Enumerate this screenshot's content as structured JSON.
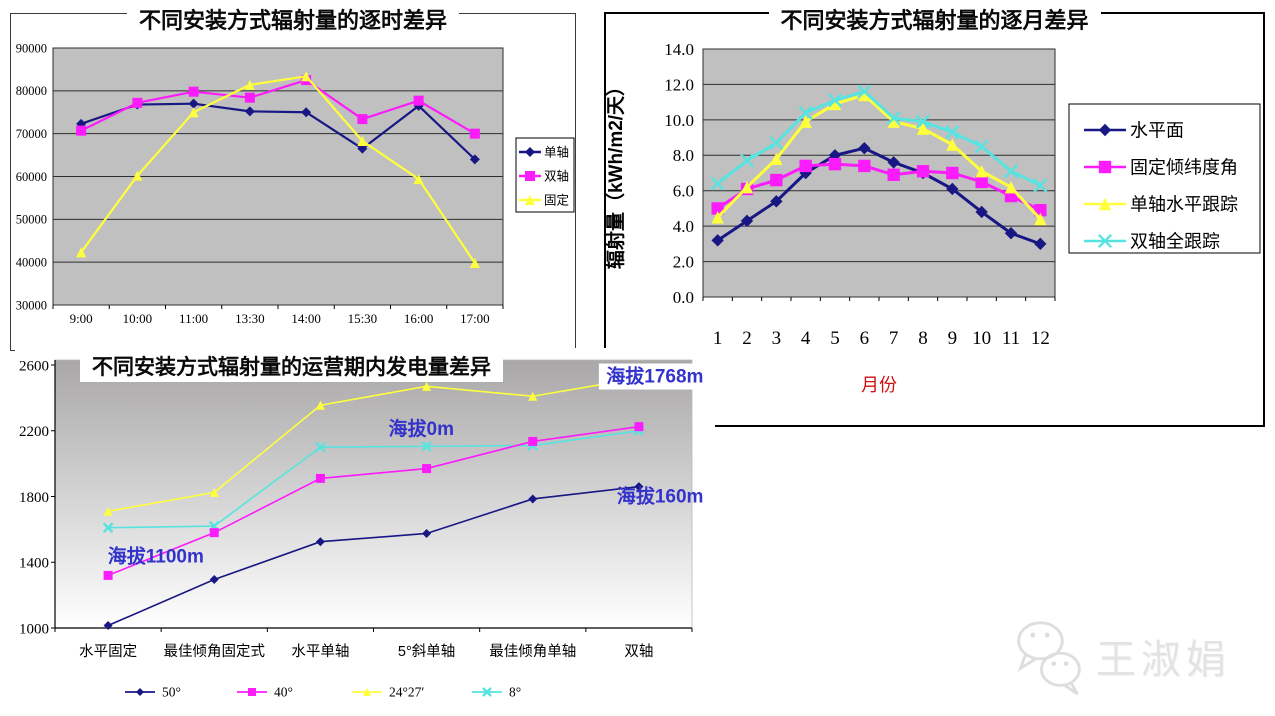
{
  "slide": {
    "background": "#ffffff"
  },
  "watermark": {
    "text": "王淑娟",
    "icon": "wechat-chat-bubbles-icon",
    "color": "#e3e3e3"
  },
  "chart_data": [
    {
      "id": "hourly-difference",
      "type": "line",
      "title": "不同安装方式辐射量的逐时差异",
      "categories": [
        "9:00",
        "10:00",
        "11:00",
        "13:30",
        "14:00",
        "15:30",
        "16:00",
        "17:00"
      ],
      "ylim": [
        30000,
        90000
      ],
      "ystep": 10000,
      "grid": true,
      "plot_bg": "#c0c0c0",
      "legend_position": "right",
      "series": [
        {
          "name": "单轴",
          "marker": "diamond",
          "color": "#181784",
          "values": [
            72300,
            76800,
            77000,
            75200,
            75000,
            66500,
            76500,
            64000
          ]
        },
        {
          "name": "双轴",
          "marker": "square",
          "color": "#fb1cfb",
          "values": [
            70700,
            77200,
            79800,
            78400,
            82500,
            73400,
            77700,
            70000
          ]
        },
        {
          "name": "固定",
          "marker": "triangle",
          "color": "#feff3d",
          "values": [
            42300,
            60200,
            75000,
            81400,
            83400,
            68300,
            59400,
            39800
          ]
        }
      ]
    },
    {
      "id": "monthly-difference",
      "type": "line",
      "title": "不同安装方式辐射量的逐月差异",
      "ylabel": "辐射量（kWh/m2/天）",
      "xlabel": "月份",
      "xlabel_color": "#cc1111",
      "categories": [
        "1",
        "2",
        "3",
        "4",
        "5",
        "6",
        "7",
        "8",
        "9",
        "10",
        "11",
        "12"
      ],
      "ylim": [
        0,
        14
      ],
      "ystep": 2,
      "ydecimals": 1,
      "grid": true,
      "plot_bg": "#c0c0c0",
      "legend_position": "right",
      "series": [
        {
          "name": "水平面",
          "marker": "diamond",
          "color": "#181784",
          "values": [
            3.2,
            4.3,
            5.4,
            7.0,
            8.0,
            8.4,
            7.6,
            7.0,
            6.1,
            4.8,
            3.6,
            3.0
          ]
        },
        {
          "name": "固定倾纬度角",
          "marker": "square",
          "color": "#fb1cfb",
          "values": [
            5.0,
            6.1,
            6.6,
            7.4,
            7.5,
            7.4,
            6.9,
            7.1,
            7.0,
            6.5,
            5.7,
            4.9
          ]
        },
        {
          "name": "单轴水平跟踪",
          "marker": "triangle",
          "color": "#feff3d",
          "values": [
            4.5,
            6.2,
            7.8,
            9.9,
            10.9,
            11.4,
            9.9,
            9.5,
            8.6,
            7.1,
            6.2,
            4.4
          ]
        },
        {
          "name": "双轴全跟踪",
          "marker": "x",
          "color": "#57e3e0",
          "values": [
            6.4,
            7.7,
            8.7,
            10.4,
            11.1,
            11.6,
            10.1,
            9.9,
            9.3,
            8.5,
            7.1,
            6.3
          ]
        }
      ]
    },
    {
      "id": "lifetime-generation-difference",
      "type": "line",
      "title": "不同安装方式辐射量的运营期内发电量差异",
      "categories": [
        "水平固定",
        "最佳倾角固定式",
        "水平单轴",
        "5°斜单轴",
        "最佳倾角单轴",
        "双轴"
      ],
      "ylim": [
        1000,
        2600
      ],
      "ystep": 400,
      "grid": false,
      "plot_bg": "gradient",
      "legend_position": "bottom",
      "annotation_color": "#3333cc",
      "series": [
        {
          "name": "50°",
          "marker": "diamond",
          "color": "#181784",
          "values": [
            1015,
            1295,
            1525,
            1575,
            1785,
            1860
          ]
        },
        {
          "name": "40°",
          "marker": "square",
          "color": "#fb1cfb",
          "values": [
            1320,
            1580,
            1910,
            1970,
            2135,
            2225
          ]
        },
        {
          "name": "24°27′",
          "marker": "triangle",
          "color": "#feff3d",
          "values": [
            1710,
            1825,
            2355,
            2470,
            2410,
            2520
          ]
        },
        {
          "name": "8°",
          "marker": "x",
          "color": "#57e3e0",
          "values": [
            1610,
            1620,
            2100,
            2105,
            2110,
            2200
          ]
        }
      ],
      "annotations": [
        {
          "text": "海拔1100m",
          "xi": 0.45,
          "value": 1435,
          "bg": false
        },
        {
          "text": "海拔0m",
          "xi": 2.95,
          "value": 2210,
          "bg": false
        },
        {
          "text": "海拔1768m",
          "xi": 5.15,
          "value": 2530,
          "bg": true
        },
        {
          "text": "海拔160m",
          "xi": 5.2,
          "value": 1800,
          "bg": false
        }
      ]
    }
  ]
}
